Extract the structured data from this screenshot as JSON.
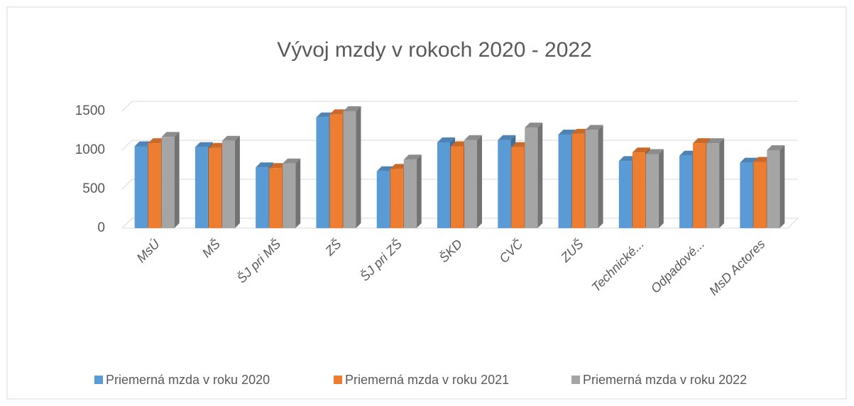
{
  "chart_data": {
    "type": "bar3d",
    "title": "Vývoj mzdy v rokoch 2020 - 2022",
    "categories": [
      "MsÚ",
      "MŠ",
      "ŠJ pri MŠ",
      "ZŠ",
      "ŠJ pri ZŠ",
      "ŠKD",
      "CVČ",
      "ZUŠ",
      "Technické...",
      "Odpadové...",
      "MsD Actores"
    ],
    "series": [
      {
        "name": "Priemerná mzda v roku 2020",
        "color": "#5b9bd5",
        "values": [
          1050,
          1040,
          780,
          1420,
          730,
          1100,
          1130,
          1200,
          860,
          930,
          840
        ]
      },
      {
        "name": "Priemerná mzda v roku 2021",
        "color": "#ed7d31",
        "values": [
          1090,
          1030,
          770,
          1460,
          760,
          1050,
          1040,
          1210,
          970,
          1090,
          850
        ]
      },
      {
        "name": "Priemerná mzda v roku 2022",
        "color": "#a5a5a5",
        "values": [
          1170,
          1120,
          830,
          1500,
          880,
          1130,
          1290,
          1260,
          950,
          1090,
          1000
        ]
      }
    ],
    "ylim": [
      0,
      1500
    ],
    "yticks": [
      0,
      500,
      1000,
      1500
    ],
    "grid": true,
    "legend": "bottom"
  }
}
